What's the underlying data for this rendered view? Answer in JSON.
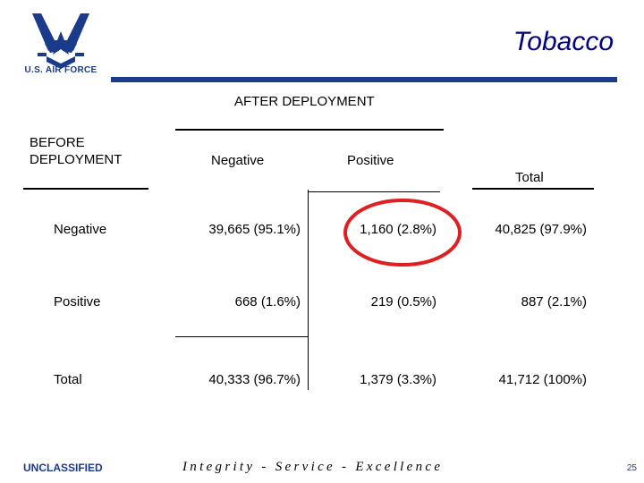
{
  "header": {
    "org": "U.S. AIR FORCE",
    "title": "Tobacco",
    "brand_color": "#1a3a8a",
    "title_color": "#000080"
  },
  "table": {
    "after_label": "AFTER DEPLOYMENT",
    "before_label": "BEFORE DEPLOYMENT",
    "col_negative": "Negative",
    "col_positive": "Positive",
    "col_total": "Total",
    "rows": [
      {
        "label": "Negative",
        "neg": "39,665 (95.1%)",
        "pos": "1,160 (2.8%)",
        "total": "40,825 (97.9%)"
      },
      {
        "label": "Positive",
        "neg": "668 (1.6%)",
        "pos": "219 (0.5%)",
        "total": "887 (2.1%)"
      },
      {
        "label": "Total",
        "neg": "40,333 (96.7%)",
        "pos": "1,379 (3.3%)",
        "total": "41,712 (100%)"
      }
    ],
    "highlight": "1,160 (2.8%)",
    "highlight_color": "#e02020"
  },
  "footer": {
    "classification": "UNCLASSIFIED",
    "motto": "Integrity - Service - Excellence",
    "page": "25"
  }
}
